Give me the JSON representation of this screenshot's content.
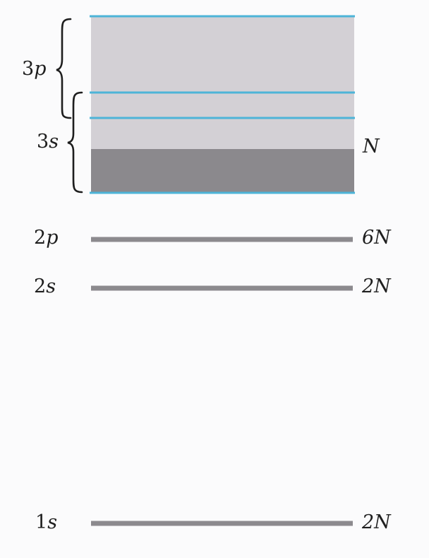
{
  "colors": {
    "band_light": "#d3d0d5",
    "band_dark": "#8b898d",
    "edge_line": "#4db4d8",
    "level_line": "#8c8a8e",
    "brace": "#1e1e1e"
  },
  "bands": [
    {
      "id": "3p",
      "coef": "3",
      "letter": "p",
      "capacity": ""
    },
    {
      "id": "3s",
      "coef": "3",
      "letter": "s",
      "capacity": "N"
    }
  ],
  "levels": [
    {
      "id": "2p",
      "coef": "2",
      "letter": "p",
      "capacity": "6N"
    },
    {
      "id": "2s",
      "coef": "2",
      "letter": "s",
      "capacity": "2N"
    },
    {
      "id": "1s",
      "coef": "1",
      "letter": "s",
      "capacity": "2N"
    }
  ]
}
